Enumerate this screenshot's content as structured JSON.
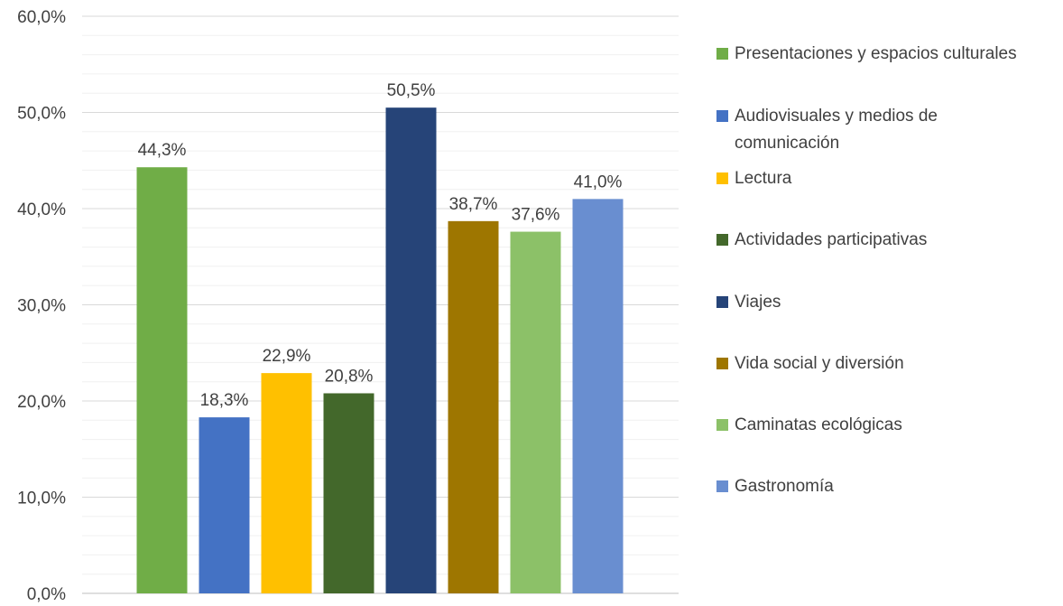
{
  "chart_data": {
    "type": "bar",
    "categories": [
      "Presentaciones y espacios culturales",
      "Audiovisuales y medios de comunicación",
      "Lectura",
      "Actividades participativas",
      "Viajes",
      "Vida social y diversión",
      "Caminatas ecológicas",
      "Gastronomía"
    ],
    "values": [
      44.3,
      18.3,
      22.9,
      20.8,
      50.5,
      38.7,
      37.6,
      41.0
    ],
    "value_labels": [
      "44,3%",
      "18,3%",
      "22,9%",
      "20,8%",
      "50,5%",
      "38,7%",
      "37,6%",
      "41,0%"
    ],
    "colors": [
      "#70AD47",
      "#4472C4",
      "#FFC000",
      "#43682B",
      "#264478",
      "#9E7600",
      "#8CC168",
      "#698ED0"
    ],
    "ylim": [
      0,
      60
    ],
    "yticks": [
      0,
      10,
      20,
      30,
      40,
      50,
      60
    ],
    "ytick_labels": [
      "0,0%",
      "10,0%",
      "20,0%",
      "30,0%",
      "40,0%",
      "50,0%",
      "60,0%"
    ],
    "grid": true,
    "minor_grid": true,
    "legend_position": "right",
    "title": "",
    "xlabel": "",
    "ylabel": ""
  }
}
